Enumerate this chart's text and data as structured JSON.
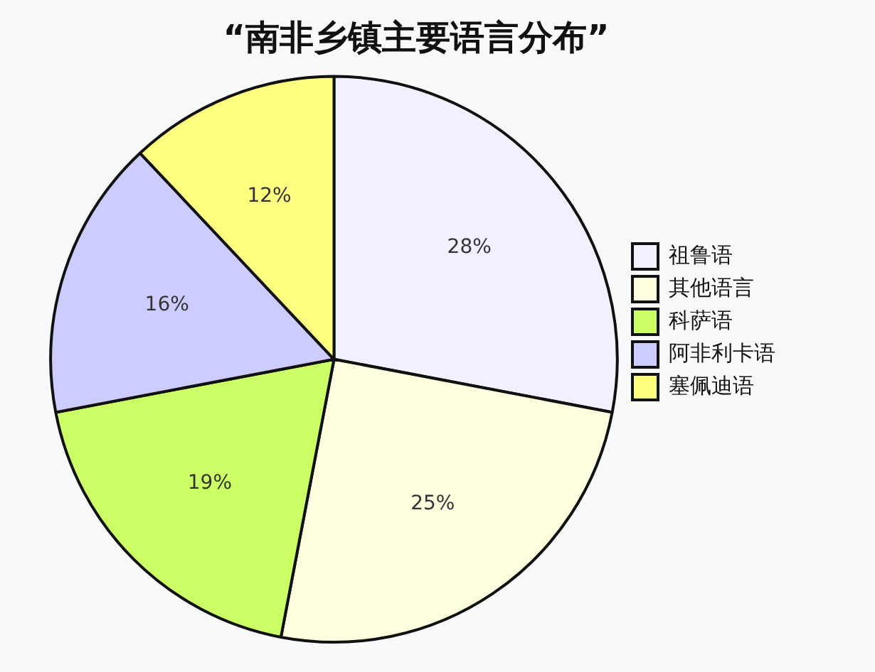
{
  "chart_data": {
    "type": "pie",
    "title": "“南非乡镇主要语言分布”",
    "categories": [
      "祖鲁语",
      "其他语言",
      "科萨语",
      "阿非利卡语",
      "塞佩迪语"
    ],
    "values": [
      28,
      25,
      19,
      16,
      12
    ],
    "value_labels": [
      "28%",
      "25%",
      "19%",
      "16%",
      "12%"
    ],
    "colors": [
      "#f0f0ff",
      "#ffffe0",
      "#ccff66",
      "#ccccff",
      "#ffff80"
    ],
    "legend": "right"
  }
}
